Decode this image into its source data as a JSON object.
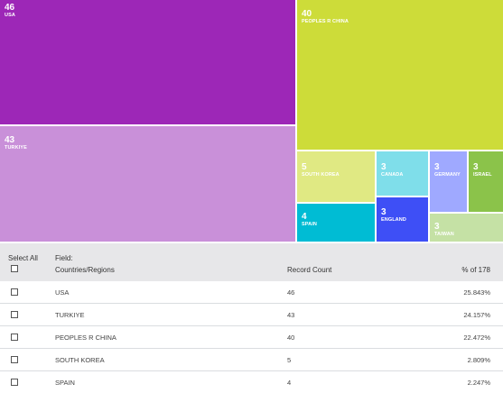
{
  "treemap": {
    "tiles": [
      {
        "count": "46",
        "label": "USA",
        "color": "#9d27b7"
      },
      {
        "count": "43",
        "label": "TURKIYE",
        "color": "#c990d9"
      },
      {
        "count": "40",
        "label": "PEOPLES R CHINA",
        "color": "#cddc39"
      },
      {
        "count": "5",
        "label": "SOUTH KOREA",
        "color": "#e0e983"
      },
      {
        "count": "4",
        "label": "SPAIN",
        "color": "#00bcd4"
      },
      {
        "count": "3",
        "label": "CANADA",
        "color": "#7fdeea"
      },
      {
        "count": "3",
        "label": "ENGLAND",
        "color": "#3e4ff6"
      },
      {
        "count": "3",
        "label": "GERMANY",
        "color": "#9fa9ff"
      },
      {
        "count": "3",
        "label": "ISRAEL",
        "color": "#8bc34a"
      },
      {
        "count": "3",
        "label": "TAIWAN",
        "color": "#c5e1a5"
      }
    ]
  },
  "table": {
    "select_all_label": "Select All",
    "field_label": "Field:",
    "field_name": "Countries/Regions",
    "count_header": "Record Count",
    "percent_header": "% of 178",
    "rows": [
      {
        "name": "USA",
        "count": "46",
        "percent": "25.843%"
      },
      {
        "name": "TURKIYE",
        "count": "43",
        "percent": "24.157%"
      },
      {
        "name": "PEOPLES R CHINA",
        "count": "40",
        "percent": "22.472%"
      },
      {
        "name": "SOUTH KOREA",
        "count": "5",
        "percent": "2.809%"
      },
      {
        "name": "SPAIN",
        "count": "4",
        "percent": "2.247%"
      }
    ]
  }
}
